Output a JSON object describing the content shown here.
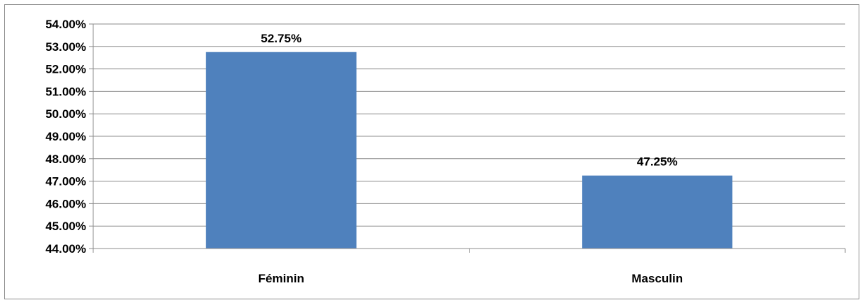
{
  "chart_data": {
    "type": "bar",
    "categories": [
      "Féminin",
      "Masculin"
    ],
    "values": [
      52.75,
      47.25
    ],
    "data_labels": [
      "52.75%",
      "47.25%"
    ],
    "ylim": [
      44,
      54
    ],
    "y_ticks": [
      44,
      45,
      46,
      47,
      48,
      49,
      50,
      51,
      52,
      53,
      54
    ],
    "y_tick_labels": [
      "44.00%",
      "45.00%",
      "46.00%",
      "47.00%",
      "48.00%",
      "49.00%",
      "50.00%",
      "51.00%",
      "52.00%",
      "53.00%",
      "54.00%"
    ],
    "title": "",
    "xlabel": "",
    "ylabel": "",
    "grid": true,
    "legend": "none",
    "bar_color": "#4f81bd",
    "grid_color": "#8c8c8c"
  }
}
